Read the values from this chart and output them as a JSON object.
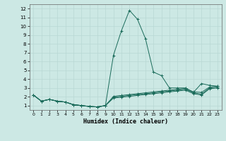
{
  "xlabel": "Humidex (Indice chaleur)",
  "bg_color": "#cce8e4",
  "grid_color": "#b8d8d4",
  "line_color": "#1a6b5a",
  "xlim": [
    -0.5,
    23.5
  ],
  "ylim": [
    0.5,
    12.5
  ],
  "xticks": [
    0,
    1,
    2,
    3,
    4,
    5,
    6,
    7,
    8,
    9,
    10,
    11,
    12,
    13,
    14,
    15,
    16,
    17,
    18,
    19,
    20,
    21,
    22,
    23
  ],
  "yticks": [
    1,
    2,
    3,
    4,
    5,
    6,
    7,
    8,
    9,
    10,
    11,
    12
  ],
  "line1_y": [
    2.2,
    1.5,
    1.7,
    1.5,
    1.4,
    1.1,
    1.0,
    0.9,
    0.85,
    1.0,
    6.7,
    9.5,
    11.8,
    10.8,
    8.6,
    4.8,
    4.4,
    3.0,
    3.0,
    3.0,
    2.5,
    3.5,
    3.3,
    3.2
  ],
  "line2_y": [
    2.2,
    1.5,
    1.7,
    1.5,
    1.4,
    1.1,
    1.0,
    0.9,
    0.85,
    1.0,
    2.05,
    2.15,
    2.25,
    2.35,
    2.45,
    2.55,
    2.65,
    2.75,
    2.85,
    2.95,
    2.55,
    2.5,
    3.1,
    3.2
  ],
  "line3_y": [
    2.2,
    1.5,
    1.7,
    1.5,
    1.4,
    1.1,
    1.0,
    0.9,
    0.85,
    1.0,
    1.95,
    2.05,
    2.15,
    2.25,
    2.35,
    2.45,
    2.55,
    2.65,
    2.75,
    2.85,
    2.45,
    2.3,
    3.0,
    3.1
  ],
  "line4_y": [
    2.2,
    1.5,
    1.7,
    1.5,
    1.4,
    1.1,
    1.0,
    0.9,
    0.85,
    1.0,
    1.85,
    1.95,
    2.05,
    2.15,
    2.25,
    2.35,
    2.45,
    2.55,
    2.65,
    2.75,
    2.35,
    2.2,
    2.9,
    3.0
  ]
}
